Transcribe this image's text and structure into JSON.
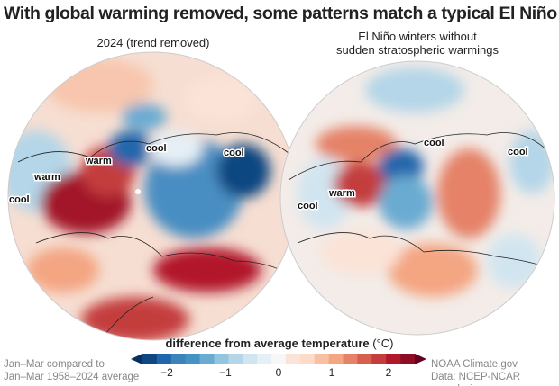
{
  "title": "With global warming removed, some patterns match a typical El Niño winter without a SSW",
  "panels": [
    {
      "subtitle": "2024 (trend removed)",
      "labels": [
        "cool",
        "warm",
        "warm",
        "cool"
      ]
    },
    {
      "subtitle_line1": "El Niño winters without",
      "subtitle_line2": "sudden stratospheric warmings",
      "labels": [
        "cool",
        "cool",
        "warm",
        "cool"
      ]
    }
  ],
  "colorbar": {
    "label": "difference from average temperature",
    "unit": "(°C)",
    "ticks": [
      "−2",
      "−1",
      "0",
      "1",
      "2"
    ],
    "range": [
      -2.4,
      2.4
    ],
    "colors": [
      "#053061",
      "#114781",
      "#2166ac",
      "#3a84bb",
      "#4393c3",
      "#6aabd2",
      "#92c5de",
      "#b4d6e8",
      "#d1e5f0",
      "#e5eff5",
      "#f7f7f7",
      "#fbe3d7",
      "#fddbc7",
      "#f8bfa2",
      "#f4a582",
      "#e58268",
      "#d6604d",
      "#c43c3c",
      "#b2182b",
      "#8e0c25",
      "#67001f"
    ]
  },
  "footer": {
    "left_line1": "Jan–Mar compared to",
    "left_line2": "Jan–Mar 1958–2024 average",
    "right_line1": "NOAA Climate.gov",
    "right_line2": "Data: NCEP-NCAR reanalysis"
  }
}
